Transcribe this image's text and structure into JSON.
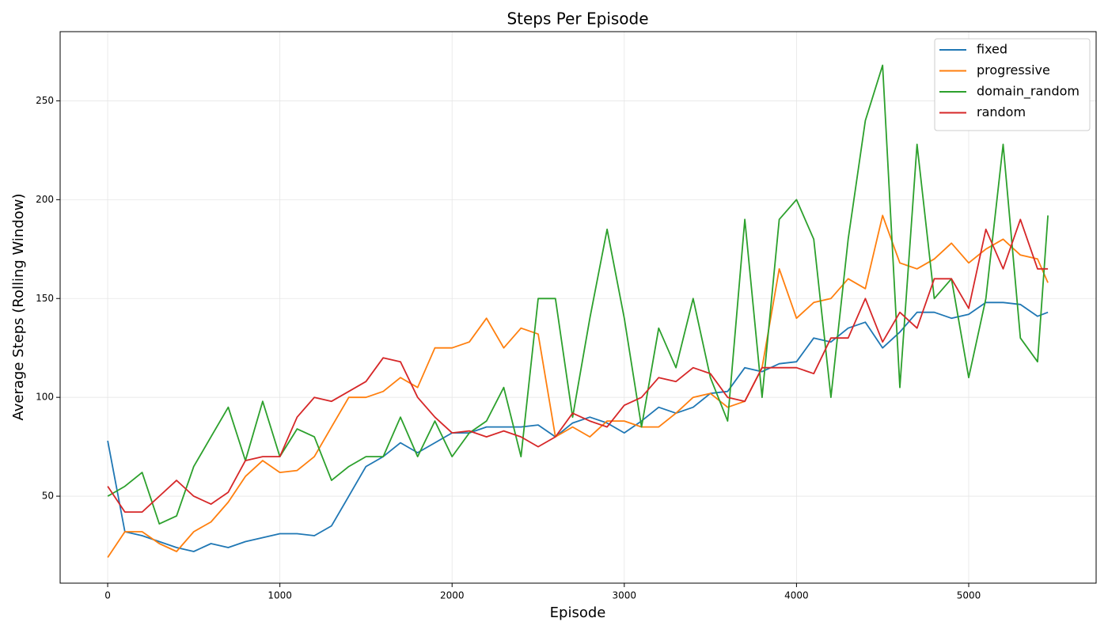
{
  "chart_data": {
    "type": "line",
    "title": "Steps Per Episode",
    "xlabel": "Episode",
    "ylabel": "Average Steps (Rolling Window)",
    "x": [
      0,
      100,
      200,
      300,
      400,
      500,
      600,
      700,
      800,
      900,
      1000,
      1100,
      1200,
      1300,
      1400,
      1500,
      1600,
      1700,
      1800,
      1900,
      2000,
      2100,
      2200,
      2300,
      2400,
      2500,
      2600,
      2700,
      2800,
      2900,
      3000,
      3100,
      3200,
      3300,
      3400,
      3500,
      3600,
      3700,
      3800,
      3900,
      4000,
      4100,
      4200,
      4300,
      4400,
      4500,
      4600,
      4700,
      4800,
      4900,
      5000,
      5100,
      5200,
      5300,
      5400,
      5460
    ],
    "series": [
      {
        "name": "fixed",
        "color": "#1f77b4",
        "values": [
          78,
          32,
          30,
          27,
          24,
          22,
          26,
          24,
          27,
          29,
          31,
          31,
          30,
          35,
          50,
          65,
          70,
          77,
          72,
          77,
          82,
          82,
          85,
          85,
          85,
          86,
          80,
          87,
          90,
          87,
          82,
          88,
          95,
          92,
          95,
          102,
          103,
          115,
          113,
          117,
          118,
          130,
          128,
          135,
          138,
          125,
          133,
          143,
          143,
          140,
          142,
          148,
          148,
          147,
          141,
          143
        ]
      },
      {
        "name": "progressive",
        "color": "#ff7f0e",
        "values": [
          19,
          32,
          32,
          26,
          22,
          32,
          37,
          47,
          60,
          68,
          62,
          63,
          70,
          85,
          100,
          100,
          103,
          110,
          105,
          125,
          125,
          128,
          140,
          125,
          135,
          132,
          80,
          85,
          80,
          88,
          88,
          85,
          85,
          92,
          100,
          102,
          95,
          98,
          115,
          165,
          140,
          148,
          150,
          160,
          155,
          192,
          168,
          165,
          170,
          178,
          168,
          175,
          180,
          172,
          170,
          158
        ]
      },
      {
        "name": "domain_random",
        "color": "#2ca02c",
        "values": [
          50,
          55,
          62,
          36,
          40,
          65,
          80,
          95,
          68,
          98,
          70,
          84,
          80,
          58,
          65,
          70,
          70,
          90,
          70,
          88,
          70,
          82,
          88,
          105,
          70,
          150,
          150,
          90,
          140,
          185,
          140,
          85,
          135,
          115,
          150,
          110,
          88,
          190,
          100,
          190,
          200,
          180,
          100,
          180,
          240,
          268,
          105,
          228,
          150,
          160,
          110,
          150,
          228,
          130,
          118,
          192
        ]
      },
      {
        "name": "random",
        "color": "#d62728",
        "values": [
          55,
          42,
          42,
          50,
          58,
          50,
          46,
          52,
          68,
          70,
          70,
          90,
          100,
          98,
          103,
          108,
          120,
          118,
          100,
          90,
          82,
          83,
          80,
          83,
          80,
          75,
          80,
          92,
          88,
          85,
          96,
          100,
          110,
          108,
          115,
          112,
          100,
          98,
          115,
          115,
          115,
          112,
          130,
          130,
          150,
          128,
          143,
          135,
          160,
          160,
          145,
          185,
          165,
          190,
          165,
          165
        ]
      }
    ],
    "xlim": [
      -276,
      5740
    ],
    "ylim": [
      6,
      285
    ],
    "xticks": [
      0,
      1000,
      2000,
      3000,
      4000,
      5000
    ],
    "yticks": [
      50,
      100,
      150,
      200,
      250
    ],
    "grid": true,
    "legend": "upper right"
  }
}
